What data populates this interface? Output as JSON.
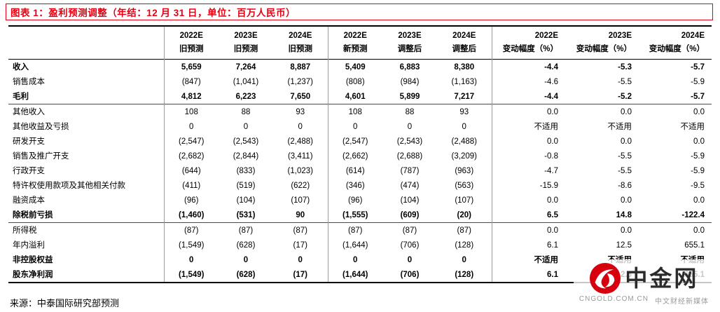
{
  "title": "图表 1：盈利预测调整（年结：12 月 31 日，单位：百万人民币）",
  "source": "来源：中泰国际研究部预测",
  "watermark": {
    "brand": "中金网",
    "domain": "CNGOLD.COM.CN",
    "tagline": "中文财经新媒体"
  },
  "colors": {
    "accent_red": "#e60012",
    "logo_red": "#d7000f",
    "text": "#000000",
    "watermark_gray": "#9a9a9a"
  },
  "chart_data": {
    "type": "table",
    "title": "盈利预测调整（年结：12 月 31 日，单位：百万人民币）",
    "columns": [
      {
        "year": "2022E",
        "label": "旧预测"
      },
      {
        "year": "2023E",
        "label": "旧预测"
      },
      {
        "year": "2024E",
        "label": "旧预测"
      },
      {
        "year": "2022E",
        "label": "新预测"
      },
      {
        "year": "2023E",
        "label": "调整后"
      },
      {
        "year": "2024E",
        "label": "调整后"
      },
      {
        "year": "2022E",
        "label": "变动幅度（%）"
      },
      {
        "year": "2023E",
        "label": "变动幅度（%）"
      },
      {
        "year": "2024E",
        "label": "变动幅度（%）"
      }
    ],
    "rows": [
      {
        "label": "收入",
        "bold": true,
        "rule_below": false,
        "values": [
          "5,659",
          "7,264",
          "8,887",
          "5,409",
          "6,883",
          "8,380",
          "-4.4",
          "-5.3",
          "-5.7"
        ]
      },
      {
        "label": "销售成本",
        "bold": false,
        "rule_below": false,
        "values": [
          "(847)",
          "(1,041)",
          "(1,237)",
          "(808)",
          "(984)",
          "(1,163)",
          "-4.6",
          "-5.5",
          "-5.9"
        ]
      },
      {
        "label": "毛利",
        "bold": true,
        "rule_below": true,
        "values": [
          "4,812",
          "6,223",
          "7,650",
          "4,601",
          "5,899",
          "7,217",
          "-4.4",
          "-5.2",
          "-5.7"
        ]
      },
      {
        "label": "其他收入",
        "bold": false,
        "rule_below": false,
        "values": [
          "108",
          "88",
          "93",
          "108",
          "88",
          "93",
          "0.0",
          "0.0",
          "0.0"
        ]
      },
      {
        "label": "其他收益及亏损",
        "bold": false,
        "rule_below": false,
        "values": [
          "0",
          "0",
          "0",
          "0",
          "0",
          "0",
          "不适用",
          "不适用",
          "不适用"
        ]
      },
      {
        "label": "研发开支",
        "bold": false,
        "rule_below": false,
        "values": [
          "(2,547)",
          "(2,543)",
          "(2,488)",
          "(2,547)",
          "(2,543)",
          "(2,488)",
          "0.0",
          "0.0",
          "0.0"
        ]
      },
      {
        "label": "销售及推广开支",
        "bold": false,
        "rule_below": false,
        "values": [
          "(2,682)",
          "(2,844)",
          "(3,411)",
          "(2,662)",
          "(2,688)",
          "(3,209)",
          "-0.8",
          "-5.5",
          "-5.9"
        ]
      },
      {
        "label": "行政开支",
        "bold": false,
        "rule_below": false,
        "values": [
          "(644)",
          "(833)",
          "(1,023)",
          "(614)",
          "(787)",
          "(963)",
          "-4.7",
          "-5.5",
          "-5.9"
        ]
      },
      {
        "label": "特许权使用款项及其他相关付款",
        "bold": false,
        "rule_below": false,
        "values": [
          "(411)",
          "(519)",
          "(622)",
          "(346)",
          "(474)",
          "(563)",
          "-15.9",
          "-8.6",
          "-9.5"
        ]
      },
      {
        "label": "融资成本",
        "bold": false,
        "rule_below": false,
        "values": [
          "(96)",
          "(104)",
          "(107)",
          "(96)",
          "(104)",
          "(107)",
          "0.0",
          "0.0",
          "0.0"
        ]
      },
      {
        "label": "除税前亏损",
        "bold": true,
        "rule_below": true,
        "values": [
          "(1,460)",
          "(531)",
          "90",
          "(1,555)",
          "(609)",
          "(20)",
          "6.5",
          "14.8",
          "-122.4"
        ]
      },
      {
        "label": "所得税",
        "bold": false,
        "rule_below": false,
        "values": [
          "(87)",
          "(87)",
          "(87)",
          "(87)",
          "(87)",
          "(87)",
          "0.0",
          "0.0",
          "0.0"
        ]
      },
      {
        "label": "年内溢利",
        "bold": false,
        "rule_below": false,
        "values": [
          "(1,549)",
          "(628)",
          "(17)",
          "(1,644)",
          "(706)",
          "(128)",
          "6.1",
          "12.5",
          "655.1"
        ]
      },
      {
        "label": "非控股权益",
        "bold": true,
        "rule_below": false,
        "values": [
          "0",
          "0",
          "0",
          "0",
          "0",
          "0",
          "不适用",
          "不适用",
          "不适用"
        ]
      },
      {
        "label": "股东净利润",
        "bold": true,
        "rule_below": false,
        "values": [
          "(1,549)",
          "(628)",
          "(17)",
          "(1,644)",
          "(706)",
          "(128)",
          "6.1",
          "12.5",
          "655.1"
        ]
      }
    ]
  }
}
